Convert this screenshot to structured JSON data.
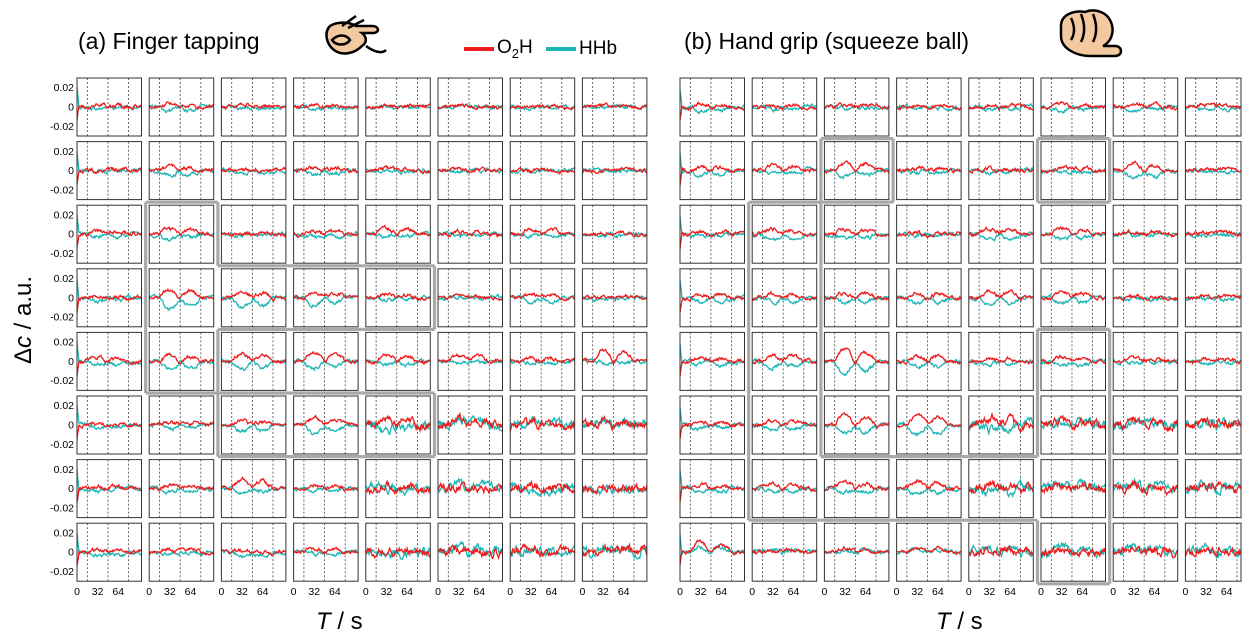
{
  "figure": {
    "ylabel_greek": "Δ",
    "ylabel_var": "c",
    "ylabel_unit": " / a.u.",
    "xlabel_var": "T",
    "xlabel_unit": " / s"
  },
  "legend": {
    "items": [
      {
        "label_pre": "O",
        "label_sub": "2",
        "label_post": "H",
        "color": "#ee1c1c"
      },
      {
        "label_pre": "HHb",
        "label_sub": "",
        "label_post": "",
        "color": "#1fb5b5"
      }
    ]
  },
  "panels": [
    {
      "id": "a",
      "title": "(a) Finger tapping",
      "hand_icon": "finger-tapping-hand-icon"
    },
    {
      "id": "b",
      "title": "(b) Hand grip (squeeze ball)",
      "hand_icon": "hand-grip-icon"
    }
  ],
  "chart_data": [
    {
      "type": "line",
      "title": "(a) Finger tapping",
      "xlabel": "T / s",
      "ylabel": "Δc / a.u.",
      "grid": "8x8",
      "x_ticks": [
        0,
        32,
        64
      ],
      "y_ticks": [
        0.02,
        0,
        -0.02
      ],
      "x_ticks_label": [
        "0",
        "32",
        "64"
      ],
      "y_ticks_label": [
        "0.02",
        "0",
        "-0.02"
      ],
      "xlim": [
        0,
        100
      ],
      "ylim": [
        -0.03,
        0.03
      ],
      "task_markers_x": [
        16,
        48,
        80
      ],
      "series": [
        {
          "name": "O2H",
          "color": "#ee1c1c"
        },
        {
          "name": "HHb",
          "color": "#1fb5b5"
        }
      ],
      "highlighted_region": [
        [
          2,
          1
        ],
        [
          3,
          1
        ],
        [
          4,
          1
        ],
        [
          3,
          2
        ],
        [
          3,
          3
        ],
        [
          3,
          4
        ],
        [
          5,
          2
        ],
        [
          5,
          3
        ],
        [
          5,
          4
        ]
      ],
      "activation": [
        [
          [
            0.002,
            -0.002
          ],
          [
            0.003,
            -0.004
          ],
          [
            0.002,
            -0.002
          ],
          [
            0.002,
            -0.001
          ],
          [
            0.001,
            0
          ],
          [
            0.001,
            -0.001
          ],
          [
            0.001,
            -0.001
          ],
          [
            0.001,
            0
          ]
        ],
        [
          [
            0,
            0
          ],
          [
            0.004,
            -0.005
          ],
          [
            0.001,
            -0.002
          ],
          [
            0.003,
            -0.004
          ],
          [
            0.002,
            -0.002
          ],
          [
            0.001,
            -0.001
          ],
          [
            0,
            0
          ],
          [
            0.001,
            -0.001
          ]
        ],
        [
          [
            0.003,
            -0.003
          ],
          [
            0.005,
            -0.005
          ],
          [
            0.002,
            -0.001
          ],
          [
            0.004,
            -0.003
          ],
          [
            0.006,
            -0.002
          ],
          [
            0.003,
            -0.001
          ],
          [
            0.005,
            -0.002
          ],
          [
            0.002,
            -0.002
          ]
        ],
        [
          [
            0.002,
            -0.004
          ],
          [
            0.008,
            -0.012
          ],
          [
            0.006,
            -0.01
          ],
          [
            0.006,
            -0.008
          ],
          [
            0.004,
            -0.002
          ],
          [
            0.002,
            0
          ],
          [
            0.004,
            -0.006
          ],
          [
            0.002,
            -0.001
          ]
        ],
        [
          [
            0.004,
            -0.003
          ],
          [
            0.006,
            -0.009
          ],
          [
            0.008,
            -0.008
          ],
          [
            0.009,
            -0.007
          ],
          [
            0.007,
            -0.004
          ],
          [
            0.006,
            -0.002
          ],
          [
            0.004,
            -0.002
          ],
          [
            0.012,
            -0.002
          ]
        ],
        [
          [
            0.002,
            -0.002
          ],
          [
            0.003,
            -0.004
          ],
          [
            0.004,
            -0.006
          ],
          [
            0.008,
            -0.009
          ],
          [
            0.009,
            -0.006
          ],
          [
            0.006,
            0.006
          ],
          [
            0.003,
            0.006
          ],
          [
            0.002,
            0.004
          ]
        ],
        [
          [
            0.002,
            -0.002
          ],
          [
            0.004,
            -0.004
          ],
          [
            0.009,
            -0.004
          ],
          [
            0.003,
            -0.002
          ],
          [
            0.002,
            0
          ],
          [
            0.002,
            0.006
          ],
          [
            0.002,
            -0.002
          ],
          [
            0.002,
            -0.002
          ]
        ],
        [
          [
            0.002,
            -0.003
          ],
          [
            0.003,
            -0.002
          ],
          [
            0.002,
            -0.005
          ],
          [
            0.004,
            -0.002
          ],
          [
            0.002,
            -0.002
          ],
          [
            0.002,
            0.008
          ],
          [
            0.002,
            0.003
          ],
          [
            0.005,
            0.004
          ]
        ]
      ]
    },
    {
      "type": "line",
      "title": "(b) Hand grip (squeeze ball)",
      "xlabel": "T / s",
      "ylabel": "Δc / a.u.",
      "grid": "8x8",
      "x_ticks": [
        0,
        32,
        64
      ],
      "y_ticks": [
        0.02,
        0,
        -0.02
      ],
      "x_ticks_label": [
        "0",
        "32",
        "64"
      ],
      "y_ticks_label": [
        "0.02",
        "0",
        "-0.02"
      ],
      "xlim": [
        0,
        100
      ],
      "ylim": [
        -0.03,
        0.03
      ],
      "task_markers_x": [
        16,
        48,
        80
      ],
      "series": [
        {
          "name": "O2H",
          "color": "#ee1c1c"
        },
        {
          "name": "HHb",
          "color": "#1fb5b5"
        }
      ],
      "highlighted_region": [
        [
          1,
          2
        ],
        [
          2,
          1
        ],
        [
          3,
          1
        ],
        [
          4,
          1
        ],
        [
          5,
          1
        ],
        [
          6,
          1
        ],
        [
          6,
          2
        ],
        [
          6,
          3
        ],
        [
          6,
          4
        ],
        [
          4,
          5
        ],
        [
          5,
          5
        ],
        [
          6,
          5
        ],
        [
          7,
          5
        ],
        [
          1,
          5
        ]
      ],
      "activation": [
        [
          [
            0.003,
            -0.004
          ],
          [
            0.002,
            -0.003
          ],
          [
            0.002,
            -0.001
          ],
          [
            0.002,
            -0.001
          ],
          [
            0.002,
            -0.002
          ],
          [
            0.004,
            -0.003
          ],
          [
            0.003,
            -0.003
          ],
          [
            0.003,
            -0.004
          ]
        ],
        [
          [
            0.004,
            -0.005
          ],
          [
            0.005,
            -0.004
          ],
          [
            0.008,
            -0.006
          ],
          [
            0.003,
            -0.002
          ],
          [
            0.002,
            -0.002
          ],
          [
            0.004,
            -0.002
          ],
          [
            0.008,
            -0.007
          ],
          [
            0.003,
            -0.002
          ]
        ],
        [
          [
            0.002,
            -0.002
          ],
          [
            0.005,
            -0.006
          ],
          [
            0.005,
            -0.004
          ],
          [
            0.002,
            -0.001
          ],
          [
            0.006,
            -0.006
          ],
          [
            0.006,
            -0.006
          ],
          [
            0.002,
            -0.001
          ],
          [
            0.002,
            -0.001
          ]
        ],
        [
          [
            0.004,
            -0.004
          ],
          [
            0.004,
            -0.005
          ],
          [
            0.005,
            -0.005
          ],
          [
            0.004,
            -0.006
          ],
          [
            0.007,
            -0.007
          ],
          [
            0.006,
            -0.005
          ],
          [
            0.002,
            -0.002
          ],
          [
            0.002,
            -0.002
          ]
        ],
        [
          [
            0.003,
            -0.004
          ],
          [
            0.007,
            -0.006
          ],
          [
            0.012,
            -0.012
          ],
          [
            0.006,
            -0.006
          ],
          [
            0.004,
            -0.003
          ],
          [
            0.005,
            -0.005
          ],
          [
            0.003,
            -0.002
          ],
          [
            0.003,
            -0.002
          ]
        ],
        [
          [
            0.004,
            -0.004
          ],
          [
            0.004,
            -0.005
          ],
          [
            0.01,
            -0.009
          ],
          [
            0.01,
            -0.01
          ],
          [
            0.007,
            -0.004
          ],
          [
            0.004,
            0.004
          ],
          [
            0.004,
            0.004
          ],
          [
            0.004,
            0.004
          ]
        ],
        [
          [
            0.004,
            -0.003
          ],
          [
            0.005,
            -0.004
          ],
          [
            0.006,
            -0.004
          ],
          [
            0.008,
            -0.006
          ],
          [
            0.005,
            -0.004
          ],
          [
            0.004,
            0.007
          ],
          [
            0.003,
            0.004
          ],
          [
            0.003,
            0.003
          ]
        ],
        [
          [
            0.01,
            0.006
          ],
          [
            0.002,
            0.003
          ],
          [
            0.004,
            0.003
          ],
          [
            0.004,
            0.003
          ],
          [
            0.002,
            0.005
          ],
          [
            0.002,
            0.007
          ],
          [
            0.002,
            0.006
          ],
          [
            0.003,
            0.004
          ]
        ]
      ]
    }
  ]
}
